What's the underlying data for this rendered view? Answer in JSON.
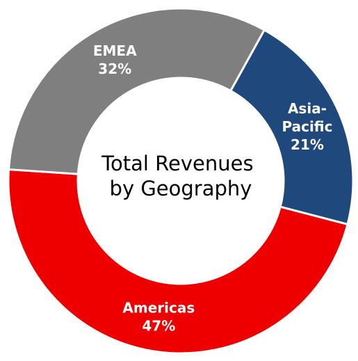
{
  "chart_data": {
    "type": "pie",
    "title": "Total Revenues by Geography",
    "title_lines": [
      "Total Revenues",
      "by Geography"
    ],
    "series": [
      {
        "name": "Asia-Pacific",
        "label_lines": [
          "Asia-",
          "Pacific"
        ],
        "value": 21,
        "value_label": "21%",
        "color": "#1f497d"
      },
      {
        "name": "Americas",
        "label_lines": [
          "Americas"
        ],
        "value": 47,
        "value_label": "47%",
        "color": "#ee0000"
      },
      {
        "name": "EMEA",
        "label_lines": [
          "EMEA"
        ],
        "value": 32,
        "value_label": "32%",
        "color": "#7f7f7f"
      }
    ],
    "start_angle_deg": 29,
    "direction": "clockwise",
    "legend": "none",
    "hole": true
  }
}
